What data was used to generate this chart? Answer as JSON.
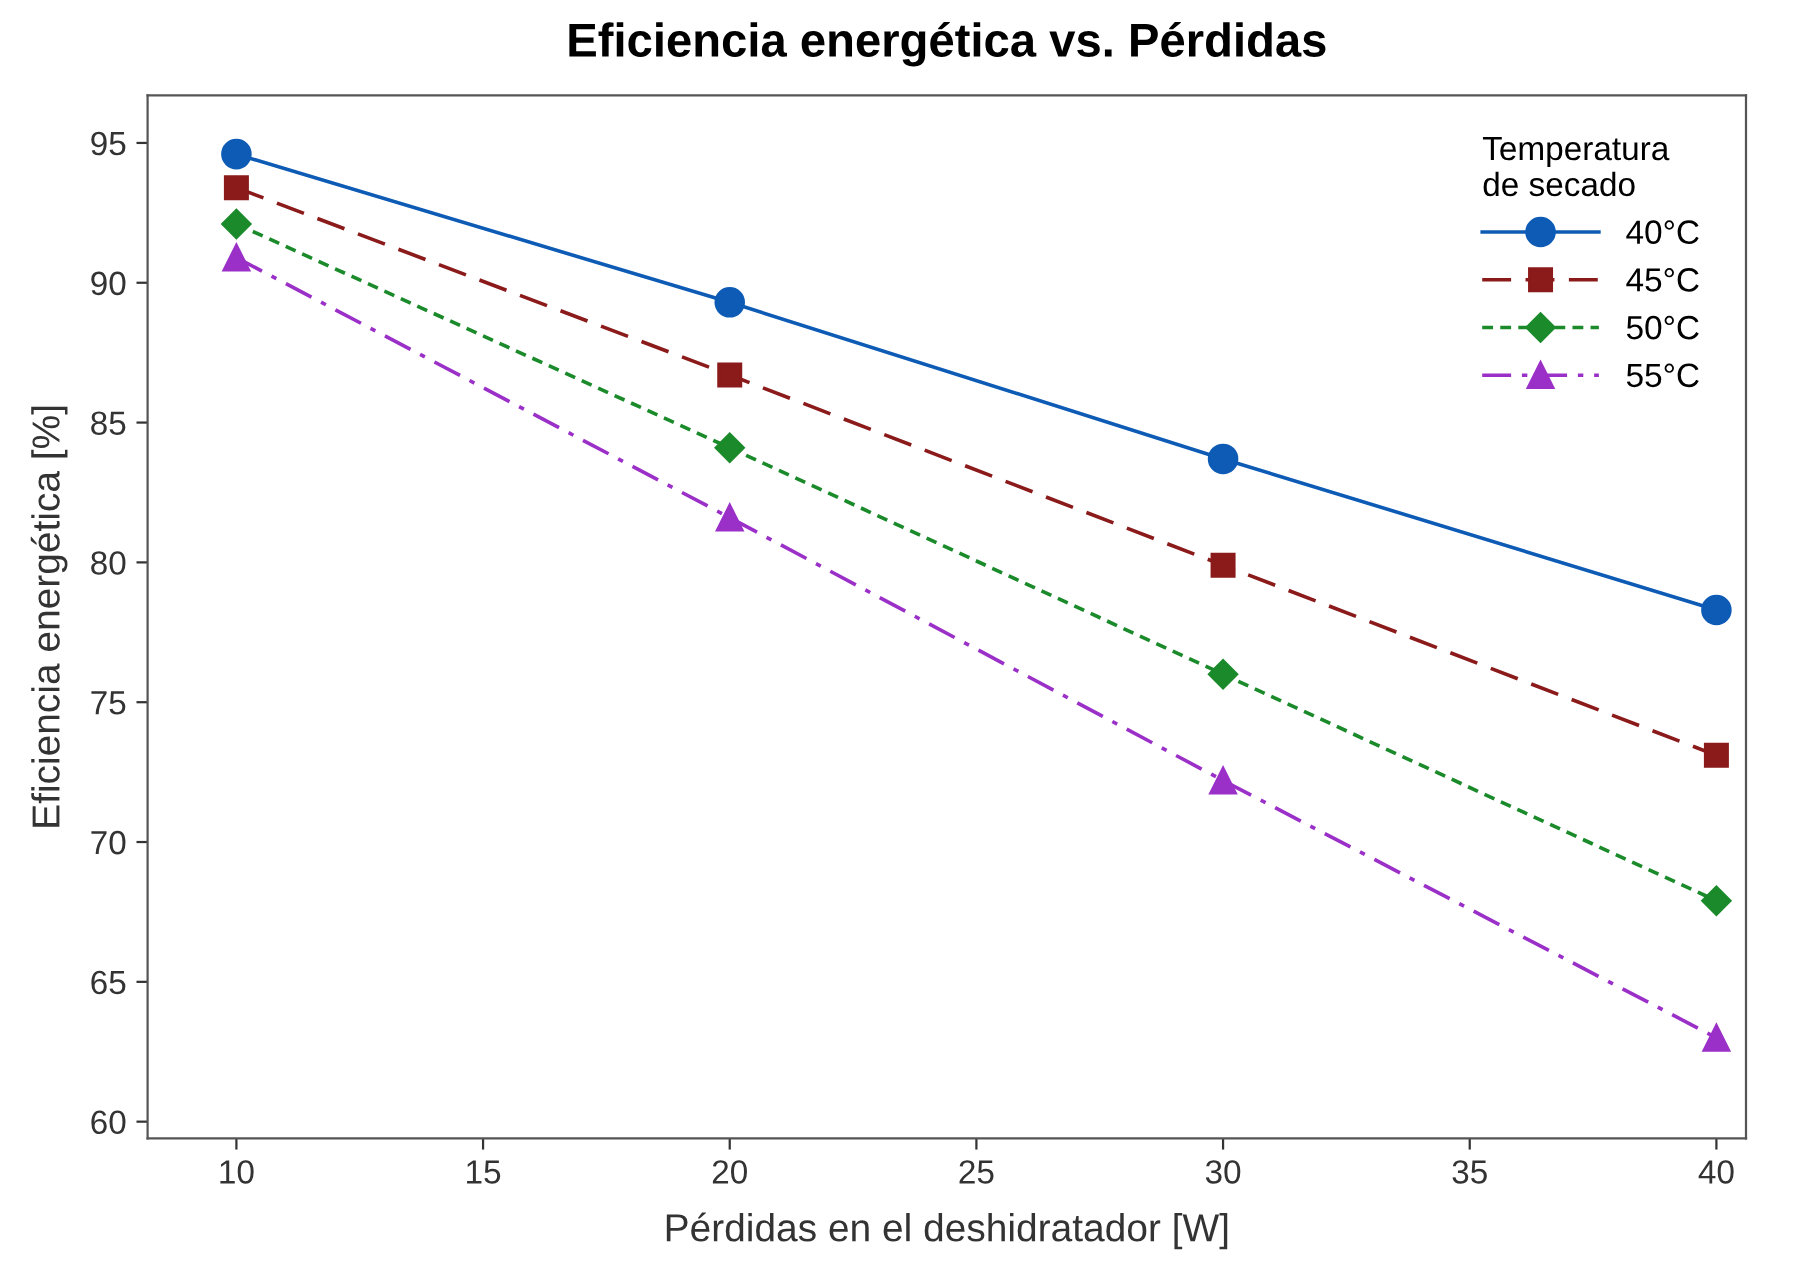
{
  "chart_data": {
    "type": "line",
    "title": "Eficiencia energética vs. Pérdidas",
    "xlabel": "Pérdidas en el deshidratador [W]",
    "ylabel": "Eficiencia energética [%]",
    "legend_title": "Temperatura\nde secado",
    "x": [
      10,
      20,
      30,
      40
    ],
    "series": [
      {
        "name": "40°C",
        "color": "#0d5bb5",
        "values": [
          94.6,
          89.3,
          83.7,
          78.3
        ],
        "marker": "circle",
        "line_style": "solid"
      },
      {
        "name": "45°C",
        "color": "#8b1a1a",
        "values": [
          93.4,
          86.7,
          79.9,
          73.1
        ],
        "marker": "square",
        "line_style": "dashed"
      },
      {
        "name": "50°C",
        "color": "#1a8a2a",
        "values": [
          92.1,
          84.1,
          76.0,
          67.9
        ],
        "marker": "diamond",
        "line_style": "dotted"
      },
      {
        "name": "55°C",
        "color": "#9b30c8",
        "values": [
          90.9,
          81.6,
          72.2,
          63.0
        ],
        "marker": "triangle",
        "line_style": "dashdot"
      }
    ],
    "xlim": [
      8.2,
      40.6
    ],
    "xticks": [
      10,
      15,
      20,
      25,
      30,
      35,
      40
    ],
    "ylim": [
      59.4,
      96.7
    ],
    "yticks": [
      60,
      65,
      70,
      75,
      80,
      85,
      90,
      95
    ],
    "grid": false,
    "legend": "top right"
  }
}
